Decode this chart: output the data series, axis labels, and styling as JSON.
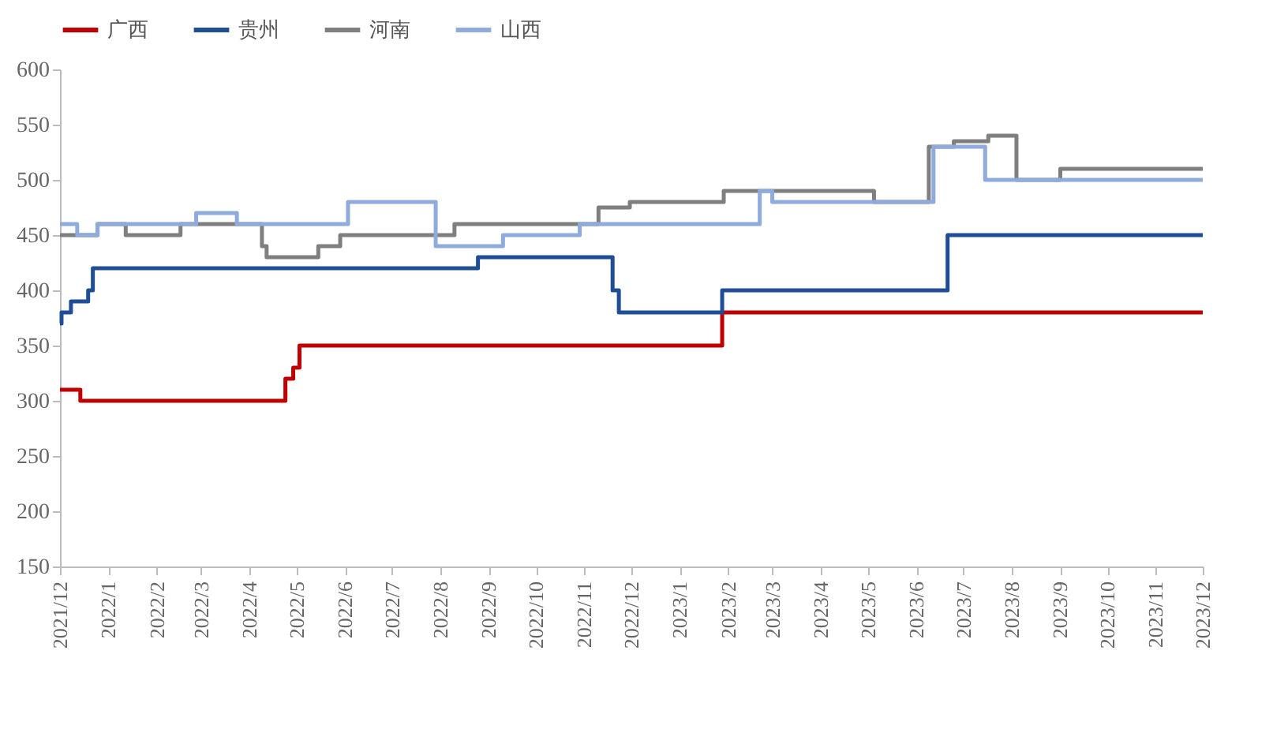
{
  "chart_data": {
    "type": "step",
    "legend": "top",
    "grid": false,
    "line_style": "solid",
    "marker": "none",
    "xlim": [
      "2021-12",
      "2023-12"
    ],
    "xticks": [
      {
        "value": "2021-12",
        "label": "2021/12"
      },
      {
        "value": "2022-01",
        "label": "2022/1"
      },
      {
        "value": "2022-02",
        "label": "2022/2"
      },
      {
        "value": "2022-03",
        "label": "2022/3"
      },
      {
        "value": "2022-04",
        "label": "2022/4"
      },
      {
        "value": "2022-05",
        "label": "2022/5"
      },
      {
        "value": "2022-06",
        "label": "2022/6"
      },
      {
        "value": "2022-07",
        "label": "2022/7"
      },
      {
        "value": "2022-08",
        "label": "2022/8"
      },
      {
        "value": "2022-09",
        "label": "2022/9"
      },
      {
        "value": "2022-10",
        "label": "2022/10"
      },
      {
        "value": "2022-11",
        "label": "2022/11"
      },
      {
        "value": "2022-12",
        "label": "2022/12"
      },
      {
        "value": "2023-01",
        "label": "2023/1"
      },
      {
        "value": "2023-02",
        "label": "2023/2"
      },
      {
        "value": "2023-03",
        "label": "2023/3"
      },
      {
        "value": "2023-04",
        "label": "2023/4"
      },
      {
        "value": "2023-05",
        "label": "2023/5"
      },
      {
        "value": "2023-06",
        "label": "2023/6"
      },
      {
        "value": "2023-07",
        "label": "2023/7"
      },
      {
        "value": "2023-08",
        "label": "2023/8"
      },
      {
        "value": "2023-09",
        "label": "2023/9"
      },
      {
        "value": "2023-10",
        "label": "2023/10"
      },
      {
        "value": "2023-11",
        "label": "2023/11"
      },
      {
        "value": "2023-12",
        "label": "2023/12"
      }
    ],
    "ylim": [
      150,
      600
    ],
    "yticks": [
      150,
      200,
      250,
      300,
      350,
      400,
      450,
      500,
      550,
      600
    ],
    "series": [
      {
        "name": "广西",
        "color": "#c00000",
        "x": [
          "2021-12-01",
          "2021-12-14",
          "2022-04-24",
          "2022-04-29",
          "2022-05-03",
          "2023-01-28",
          "2023-12-01"
        ],
        "values": [
          310,
          300,
          320,
          330,
          350,
          380,
          380
        ]
      },
      {
        "name": "贵州",
        "color": "#1f4e96",
        "x": [
          "2021-12-01",
          "2021-12-02",
          "2021-12-08",
          "2021-12-19",
          "2021-12-22",
          "2022-08-25",
          "2022-11-19",
          "2022-11-23",
          "2023-01-28",
          "2023-06-21",
          "2023-12-01"
        ],
        "values": [
          370,
          380,
          390,
          400,
          420,
          430,
          400,
          380,
          400,
          450,
          450
        ]
      },
      {
        "name": "河南",
        "color": "#7f7f7f",
        "x": [
          "2021-12-01",
          "2021-12-25",
          "2022-01-12",
          "2022-02-16",
          "2022-04-09",
          "2022-04-12",
          "2022-05-15",
          "2022-05-29",
          "2022-08-10",
          "2022-11-10",
          "2022-11-30",
          "2023-01-29",
          "2023-05-05",
          "2023-06-09",
          "2023-06-25",
          "2023-07-17",
          "2023-08-04",
          "2023-09-01",
          "2023-12-01"
        ],
        "values": [
          450,
          460,
          450,
          460,
          440,
          430,
          440,
          450,
          460,
          475,
          480,
          490,
          480,
          530,
          535,
          540,
          500,
          510,
          510
        ]
      },
      {
        "name": "山西",
        "color": "#8faadc",
        "x": [
          "2021-12-01",
          "2021-12-12",
          "2021-12-25",
          "2022-02-26",
          "2022-03-24",
          "2022-06-03",
          "2022-07-29",
          "2022-09-10",
          "2022-10-29",
          "2023-02-21",
          "2023-03-01",
          "2023-06-12",
          "2023-07-15",
          "2023-12-01"
        ],
        "values": [
          460,
          450,
          460,
          470,
          460,
          480,
          440,
          450,
          460,
          490,
          480,
          530,
          500,
          500
        ]
      }
    ]
  }
}
